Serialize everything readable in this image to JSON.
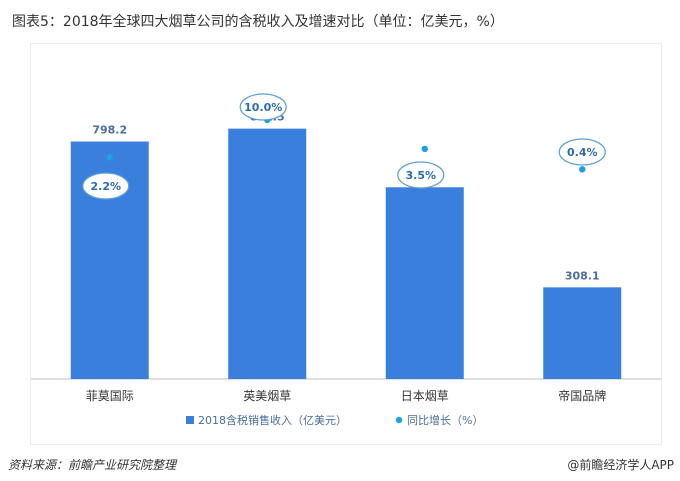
{
  "title": "图表5：2018年全球四大烟草公司的含税收入及增速对比（单位：亿美元，%）",
  "source": "资料来源：前瞻产业研究院整理",
  "brand": "@前瞻经济学人APP",
  "colors": {
    "bar": "#3a7fdc",
    "dot": "#1aa3e0",
    "bubble_stroke": "#5a9fd4"
  },
  "chart_data": {
    "type": "bar",
    "categories": [
      "菲莫国际",
      "英美烟草",
      "日本烟草",
      "帝国品牌"
    ],
    "series": [
      {
        "name": "2018含税销售收入（亿美元）",
        "type": "bar",
        "axis": "left",
        "values": [
          798.2,
          841.5,
          644.4,
          308.1
        ],
        "labels": [
          "798.2",
          "841.5",
          "644.4",
          "308.1"
        ]
      },
      {
        "name": "同比增长（%）",
        "type": "scatter",
        "axis": "right",
        "values": [
          2.2,
          10.0,
          3.5,
          0.4
        ],
        "labels": [
          "2.2%",
          "10.0%",
          "3.5%",
          "0.4%"
        ]
      }
    ],
    "ylim_left": [
      0,
      900
    ],
    "legend": "bottom",
    "grid": false
  }
}
